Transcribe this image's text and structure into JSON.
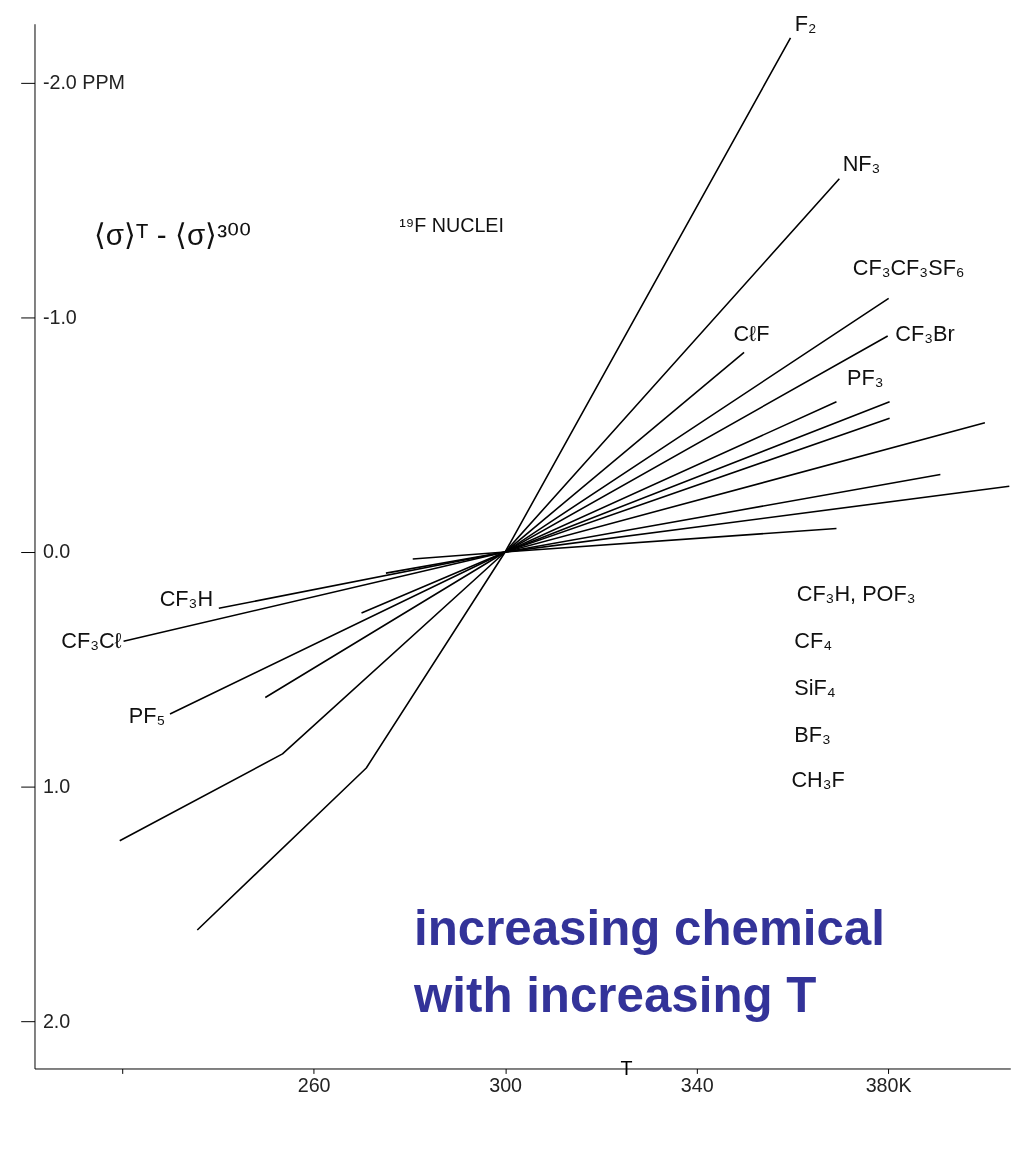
{
  "chart_data": {
    "type": "line",
    "title": "¹⁹F NUCLEI",
    "ylabel": "⟨σ⟩ᵀ - ⟨σ⟩³⁰⁰",
    "xlabel": "T",
    "xlim": [
      201.7,
      405.5
    ],
    "ylim": [
      2.2,
      -2.25
    ],
    "xticks": [
      {
        "value": 220,
        "label": null
      },
      260,
      300,
      340,
      {
        "value": 380,
        "label": "380K"
      }
    ],
    "yticks": [
      {
        "value": -2,
        "label": "-2.0 PPM"
      },
      {
        "value": -1,
        "label": "-1.0"
      },
      {
        "value": 0,
        "label": "0.0"
      },
      {
        "value": 1,
        "label": "1.0"
      },
      {
        "value": 2,
        "label": "2.0"
      }
    ],
    "grid": false,
    "marker": "none",
    "line_style": "solid",
    "series": [
      {
        "color": "#000000",
        "x": [
          235.7,
          271,
          300,
          359.6
        ],
        "values": [
          1.61,
          0.92,
          0,
          -2.19
        ]
      },
      {
        "color": "#000000",
        "x": [
          219.5,
          253.5,
          300,
          369.8
        ],
        "values": [
          1.23,
          0.86,
          0,
          -1.59
        ]
      },
      {
        "color": "#000000",
        "x": [
          230.0,
          300,
          380.1
        ],
        "values": [
          0.69,
          0,
          -1.08
        ]
      },
      {
        "color": "#000000",
        "x": [
          249.9,
          300,
          379.9
        ],
        "values": [
          0.62,
          0,
          -0.92
        ]
      },
      {
        "color": "#000000",
        "x": [
          300,
          349.9
        ],
        "values": [
          0,
          -0.85
        ]
      },
      {
        "color": "#000000",
        "x": [
          270.0,
          300,
          369.2
        ],
        "values": [
          0.26,
          0,
          -0.64
        ]
      },
      {
        "color": "#000000",
        "x": [
          220.3,
          300,
          380.3
        ],
        "values": [
          0.38,
          0,
          -0.64
        ]
      },
      {
        "color": "#000000",
        "x": [
          240.2,
          300,
          380.3
        ],
        "values": [
          0.24,
          0,
          -0.57
        ]
      },
      {
        "color": "#000000",
        "x": [
          275.1,
          300,
          400.2
        ],
        "values": [
          0.09,
          0,
          -0.55
        ]
      },
      {
        "color": "#000000",
        "x": [
          280.7,
          300,
          390.9
        ],
        "values": [
          0.03,
          0,
          -0.33
        ]
      },
      {
        "color": "#000000",
        "x": [
          300,
          405.3
        ],
        "values": [
          0,
          -0.28
        ]
      },
      {
        "color": "#000000",
        "x": [
          300,
          369.2
        ],
        "values": [
          0,
          -0.1
        ]
      }
    ],
    "annotations": [
      "F₂",
      "NF₃",
      "CF₃CF₃SF₆",
      "CℓF",
      "CF₃Br",
      "PF₃",
      "CF₃H, POF₃",
      "CF₄",
      "SiF₄",
      "BF₃",
      "CH₃F",
      "CF₃H",
      "CF₃Cℓ",
      "PF₅",
      "increasing chemical",
      "with increasing T"
    ]
  }
}
